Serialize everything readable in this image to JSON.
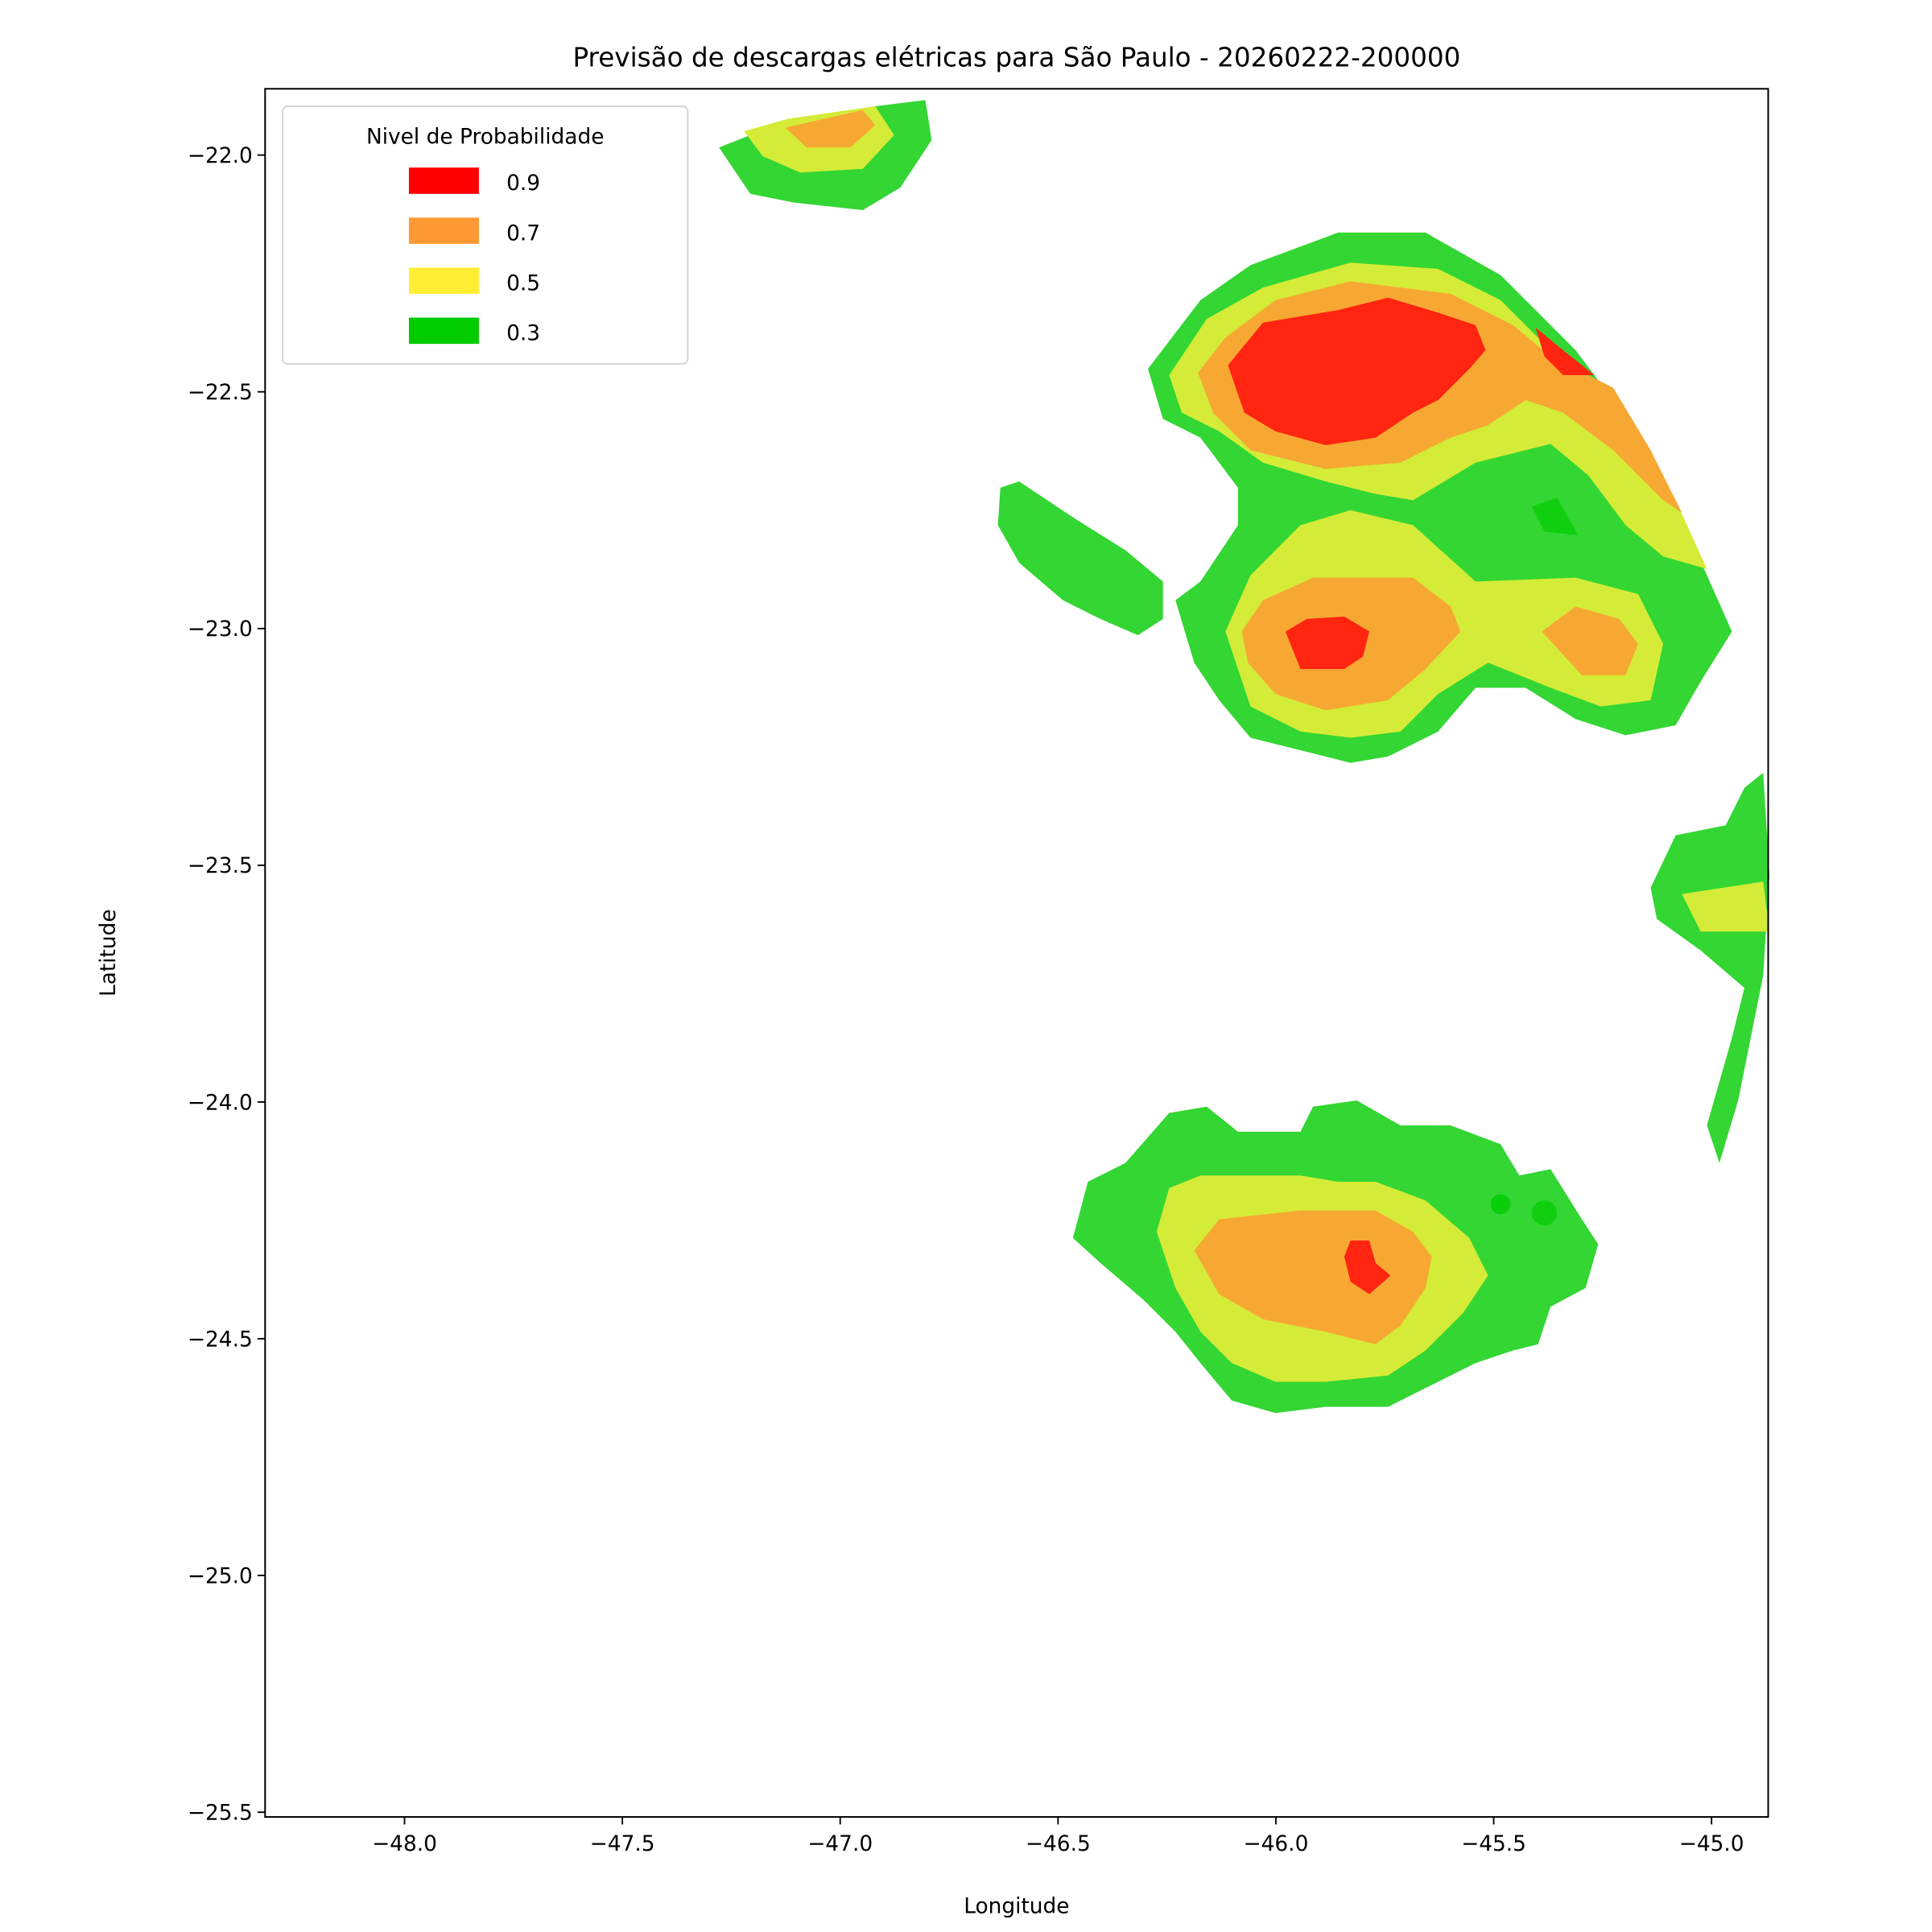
{
  "chart_data": {
    "type": "contourf",
    "title": "Previsão de descargas elétricas para São Paulo - 20260222-200000",
    "xlabel": "Longitude",
    "ylabel": "Latitude",
    "xlim": [
      -48.32,
      -44.87
    ],
    "ylim": [
      -25.51,
      -21.86
    ],
    "xticks": [
      -48.0,
      -47.5,
      -47.0,
      -46.5,
      -46.0,
      -45.5,
      -45.0
    ],
    "xtick_labels": [
      "−48.0",
      "−47.5",
      "−47.0",
      "−46.5",
      "−46.0",
      "−45.5",
      "−45.0"
    ],
    "yticks": [
      -22.0,
      -22.5,
      -23.0,
      -23.5,
      -24.0,
      -24.5,
      -25.0,
      -25.5
    ],
    "ytick_labels": [
      "−22.0",
      "−22.5",
      "−23.0",
      "−23.5",
      "−24.0",
      "−24.5",
      "−25.0",
      "−25.5"
    ],
    "grid": false,
    "legend": {
      "title": "Nivel de Probabilidade",
      "placement": "top-left",
      "entries": [
        {
          "label": "0.9",
          "color": "#ff0000"
        },
        {
          "label": "0.7",
          "color": "#ff9933"
        },
        {
          "label": "0.5",
          "color": "#ffee33"
        },
        {
          "label": "0.3",
          "color": "#00cc00"
        }
      ]
    },
    "fill_colors": {
      "0.3": "#33d633",
      "0.5": "#d4ec37",
      "0.7": "#f7a833",
      "0.9": "#ff2510"
    }
  }
}
